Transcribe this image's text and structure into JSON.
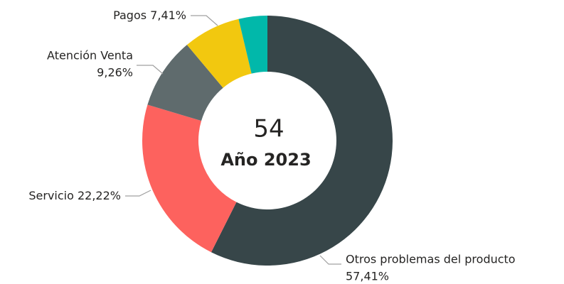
{
  "chart_data": {
    "type": "donut",
    "categories": [
      "Otros problemas del producto",
      "Servicio",
      "Atención Venta",
      "Pagos",
      null
    ],
    "values": [
      57.41,
      22.22,
      9.26,
      7.41,
      3.7
    ],
    "value_labels": [
      "57,41%",
      "22,22%",
      "9,26%",
      "7,41%",
      null
    ],
    "colors": [
      "#374649",
      "#fd625e",
      "#5f6b6d",
      "#f2c80f",
      "#01b8aa"
    ],
    "center_value": 54,
    "center_label": "Año 2023"
  }
}
